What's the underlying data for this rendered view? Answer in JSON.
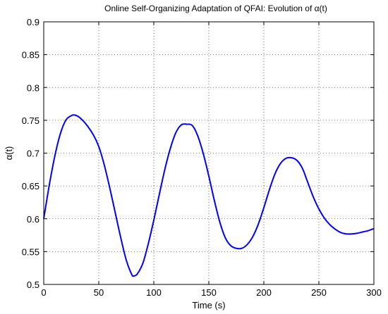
{
  "chart_data": {
    "type": "line",
    "title": "Online Self-Organizing Adaptation of QFAI: Evolution of α(t)",
    "xlabel": "Time (s)",
    "ylabel": "α(t)",
    "xlim": [
      0,
      300
    ],
    "ylim": [
      0.5,
      0.9
    ],
    "xticks": [
      0,
      50,
      100,
      150,
      200,
      250,
      300
    ],
    "yticks": [
      0.5,
      0.55,
      0.6,
      0.65,
      0.7,
      0.75,
      0.8,
      0.85,
      0.9
    ],
    "xtick_labels": [
      "0",
      "50",
      "100",
      "150",
      "200",
      "250",
      "300"
    ],
    "ytick_labels": [
      "0.5",
      "0.55",
      "0.6",
      "0.65",
      "0.7",
      "0.75",
      "0.8",
      "0.85",
      "0.9"
    ],
    "grid": true,
    "grid_style": "dotted",
    "series": [
      {
        "color": "#0000ff",
        "x": [
          0,
          5,
          10,
          15,
          20,
          25,
          28,
          32,
          38,
          45,
          50,
          55,
          60,
          65,
          70,
          75,
          80,
          82,
          85,
          90,
          95,
          100,
          105,
          110,
          115,
          120,
          125,
          130,
          135,
          140,
          145,
          150,
          155,
          160,
          165,
          170,
          175,
          180,
          185,
          190,
          195,
          200,
          205,
          210,
          215,
          220,
          225,
          230,
          235,
          240,
          245,
          250,
          255,
          260,
          265,
          270,
          275,
          280,
          285,
          290,
          295,
          300
        ],
        "y": [
          0.6,
          0.651,
          0.695,
          0.729,
          0.75,
          0.757,
          0.758,
          0.755,
          0.745,
          0.728,
          0.71,
          0.682,
          0.647,
          0.609,
          0.571,
          0.537,
          0.515,
          0.513,
          0.516,
          0.532,
          0.562,
          0.598,
          0.637,
          0.675,
          0.707,
          0.731,
          0.743,
          0.744,
          0.742,
          0.726,
          0.699,
          0.665,
          0.628,
          0.595,
          0.571,
          0.559,
          0.555,
          0.555,
          0.561,
          0.573,
          0.592,
          0.617,
          0.644,
          0.668,
          0.684,
          0.692,
          0.693,
          0.689,
          0.677,
          0.655,
          0.633,
          0.615,
          0.601,
          0.591,
          0.584,
          0.579,
          0.577,
          0.577,
          0.578,
          0.58,
          0.582,
          0.585
        ]
      }
    ]
  }
}
